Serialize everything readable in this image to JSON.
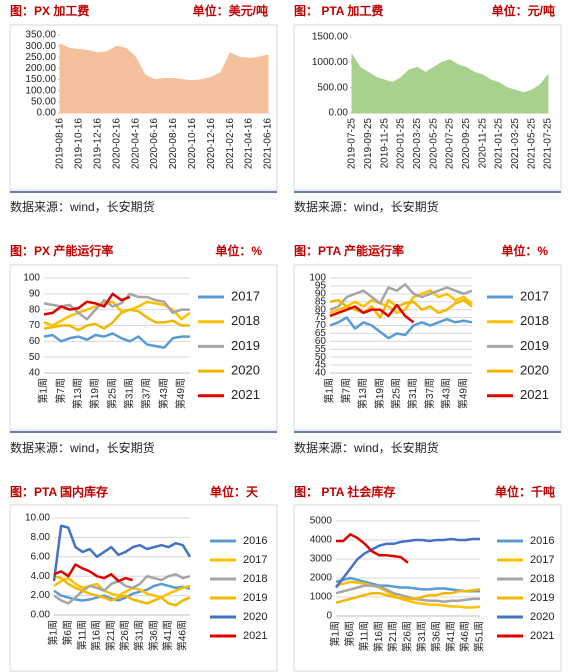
{
  "chart_data": [
    {
      "type": "area",
      "title": "图：PX 加工费",
      "unit": "单位：美元/吨",
      "source": "数据来源：wind，长安期货",
      "color": "#f4c09e",
      "grid": false,
      "categories": [
        "2019-08-16",
        null,
        "2019-10-16",
        null,
        "2019-12-16",
        null,
        "2020-02-16",
        null,
        "2020-04-16",
        null,
        "2020-06-16",
        null,
        "2020-08-16",
        null,
        "2020-10-16",
        null,
        "2020-12-16",
        null,
        "2021-02-16",
        null,
        "2021-04-16",
        null,
        "2021-06-16"
      ],
      "values": [
        310,
        290,
        285,
        280,
        270,
        275,
        300,
        290,
        250,
        170,
        150,
        155,
        155,
        150,
        145,
        150,
        160,
        180,
        270,
        250,
        245,
        250,
        260
      ],
      "ylim": [
        0,
        350
      ],
      "yticks": [
        {
          "value": 0,
          "label": "0.00"
        },
        {
          "value": 50,
          "label": "50.00"
        },
        {
          "value": 100,
          "label": "100.00"
        },
        {
          "value": 150,
          "label": "150.00"
        },
        {
          "value": 200,
          "label": "200.00"
        },
        {
          "value": 250,
          "label": "250.00"
        },
        {
          "value": 300,
          "label": "300.00"
        },
        {
          "value": 350,
          "label": "350.00"
        }
      ]
    },
    {
      "type": "area",
      "title": "图： PTA 加工费",
      "unit": "单位：元/吨",
      "source": "数据来源：wind，长安期货",
      "color": "#a9d18e",
      "grid": false,
      "categories": [
        "2019-07-25",
        null,
        "2019-09-25",
        null,
        "2019-11-25",
        null,
        "2020-01-25",
        null,
        "2020-03-25",
        null,
        "2020-05-25",
        null,
        "2020-07-25",
        null,
        "2020-09-25",
        null,
        "2020-11-25",
        null,
        "2021-01-25",
        null,
        "2021-03-25",
        null,
        "2021-05-25",
        null,
        "2021-07-25"
      ],
      "values": [
        1150,
        900,
        800,
        700,
        650,
        600,
        700,
        850,
        900,
        800,
        900,
        1000,
        1050,
        950,
        900,
        800,
        750,
        650,
        600,
        500,
        450,
        400,
        450,
        550,
        750
      ],
      "ylim": [
        0,
        1500
      ],
      "yticks": [
        {
          "value": 0,
          "label": "0.00"
        },
        {
          "value": 500,
          "label": "500.00"
        },
        {
          "value": 1000,
          "label": "1000.00"
        },
        {
          "value": 1500,
          "label": "1500.00"
        }
      ]
    },
    {
      "type": "line",
      "title": "图：PX 产能运行率",
      "unit": "单位：%",
      "source": "数据来源：wind，长安期货",
      "grid": true,
      "categories": [
        "第1周",
        null,
        "第7周",
        null,
        "第13周",
        null,
        "第19周",
        null,
        "第25周",
        null,
        "第31周",
        null,
        "第37周",
        null,
        "第43周",
        null,
        "第49周",
        null
      ],
      "series": [
        {
          "name": "2017",
          "color": "#5b9bd5",
          "values": [
            63,
            64,
            60,
            62,
            63,
            61,
            64,
            63,
            65,
            62,
            60,
            63,
            58,
            57,
            56,
            62,
            63,
            63
          ]
        },
        {
          "name": "2018",
          "color": "#ffc000",
          "values": [
            72,
            70,
            73,
            76,
            78,
            80,
            82,
            84,
            85,
            79,
            80,
            82,
            85,
            84,
            83,
            80,
            74,
            78
          ]
        },
        {
          "name": "2019",
          "color": "#a5a5a5",
          "values": [
            84,
            83,
            82,
            83,
            78,
            74,
            80,
            86,
            82,
            84,
            90,
            88,
            88,
            86,
            85,
            78,
            80,
            80
          ]
        },
        {
          "name": "2020",
          "color": "#f2b800",
          "values": [
            68,
            69,
            70,
            70,
            67,
            70,
            71,
            68,
            72,
            78,
            80,
            79,
            75,
            72,
            72,
            73,
            70,
            70
          ]
        },
        {
          "name": "2021",
          "color": "#e00000",
          "values": [
            77,
            78,
            82,
            80,
            81,
            85,
            84,
            82,
            90,
            86,
            88,
            null,
            null,
            null,
            null,
            null,
            null,
            null
          ]
        }
      ],
      "ylim": [
        40,
        100
      ],
      "yticks": [
        40,
        50,
        60,
        70,
        80,
        90,
        100
      ]
    },
    {
      "type": "line",
      "title": "图：PTA 产能运行率",
      "unit": "单位：%",
      "source": "数据来源：wind，长安期货",
      "grid": true,
      "categories": [
        "第1周",
        null,
        "第7周",
        null,
        "第13周",
        null,
        "第19周",
        null,
        "第25周",
        null,
        "第31周",
        null,
        "第37周",
        null,
        "第43周",
        null,
        "第49周",
        null
      ],
      "series": [
        {
          "name": "2017",
          "color": "#5b9bd5",
          "values": [
            70,
            72,
            75,
            68,
            72,
            70,
            66,
            62,
            65,
            64,
            70,
            72,
            70,
            72,
            74,
            72,
            73,
            72
          ]
        },
        {
          "name": "2018",
          "color": "#ffc000",
          "values": [
            78,
            80,
            82,
            85,
            82,
            86,
            84,
            82,
            78,
            80,
            88,
            90,
            92,
            88,
            90,
            86,
            88,
            84
          ]
        },
        {
          "name": "2019",
          "color": "#a5a5a5",
          "values": [
            80,
            82,
            88,
            90,
            92,
            88,
            84,
            94,
            92,
            96,
            90,
            88,
            90,
            92,
            94,
            92,
            90,
            92
          ]
        },
        {
          "name": "2020",
          "color": "#f2b800",
          "values": [
            85,
            86,
            82,
            80,
            78,
            82,
            75,
            86,
            82,
            84,
            85,
            80,
            82,
            78,
            80,
            84,
            86,
            82
          ]
        },
        {
          "name": "2021",
          "color": "#e00000",
          "values": [
            76,
            78,
            80,
            82,
            78,
            80,
            80,
            76,
            83,
            76,
            72,
            null,
            null,
            null,
            null,
            null,
            null,
            null
          ]
        }
      ],
      "ylim": [
        40,
        100
      ],
      "yticks": [
        40,
        45,
        50,
        55,
        60,
        65,
        70,
        75,
        80,
        85,
        90,
        95,
        100
      ]
    },
    {
      "type": "line",
      "title": "图：PTA 国内库存",
      "unit": "单位：天",
      "grid": true,
      "categories": [
        "第1周",
        null,
        "第6周",
        null,
        "第11周",
        null,
        "第16周",
        null,
        "第21周",
        null,
        "第26周",
        null,
        "第31周",
        null,
        "第36周",
        null,
        "第41周",
        null,
        "第46周",
        null
      ],
      "series": [
        {
          "name": "2016",
          "color": "#5b9bd5",
          "values": [
            2.5,
            2.0,
            1.8,
            1.6,
            1.5,
            1.6,
            1.8,
            2.0,
            1.7,
            1.5,
            1.8,
            2.2,
            2.4,
            2.6,
            3.0,
            3.2,
            3.0,
            2.8,
            2.9,
            2.7
          ]
        },
        {
          "name": "2017",
          "color": "#ffc000",
          "values": [
            3.0,
            3.5,
            3.8,
            3.2,
            2.8,
            3.0,
            3.2,
            2.5,
            2.2,
            2.0,
            2.4,
            2.8,
            2.6,
            2.2,
            2.0,
            1.8,
            2.2,
            2.5,
            2.8,
            3.0
          ]
        },
        {
          "name": "2018",
          "color": "#a5a5a5",
          "values": [
            2.0,
            1.5,
            1.2,
            1.8,
            2.5,
            3.0,
            2.8,
            2.5,
            3.2,
            3.5,
            3.0,
            2.8,
            3.2,
            4.0,
            3.8,
            3.6,
            4.0,
            4.2,
            3.8,
            4.0
          ]
        },
        {
          "name": "2019",
          "color": "#f2b800",
          "values": [
            4.0,
            3.8,
            3.2,
            2.8,
            2.5,
            2.2,
            2.0,
            1.8,
            1.5,
            1.8,
            2.0,
            1.6,
            1.4,
            1.2,
            1.5,
            1.8,
            1.2,
            1.0,
            1.5,
            1.8
          ]
        },
        {
          "name": "2020",
          "color": "#4472c4",
          "values": [
            3.5,
            9.2,
            9.0,
            7.0,
            6.5,
            6.8,
            6.0,
            6.5,
            7.0,
            6.2,
            6.5,
            7.0,
            7.2,
            6.8,
            7.0,
            7.2,
            7.0,
            7.4,
            7.2,
            6.0
          ]
        },
        {
          "name": "2021",
          "color": "#e00000",
          "values": [
            4.2,
            4.5,
            4.0,
            5.2,
            4.8,
            4.5,
            4.0,
            3.8,
            4.2,
            3.5,
            3.8,
            3.6,
            null,
            null,
            null,
            null,
            null,
            null,
            null,
            null
          ]
        }
      ],
      "ylim": [
        0,
        10
      ],
      "yticks": [
        {
          "value": 0,
          "label": "0.00"
        },
        {
          "value": 2,
          "label": "2.00"
        },
        {
          "value": 4,
          "label": "4.00"
        },
        {
          "value": 6,
          "label": "6.00"
        },
        {
          "value": 8,
          "label": "8.00"
        },
        {
          "value": 10,
          "label": "10.00"
        }
      ]
    },
    {
      "type": "line",
      "title": "图： PTA 社会库存",
      "unit": "单位：千吨",
      "grid": true,
      "categories": [
        "第1周",
        null,
        "第6周",
        null,
        "第11周",
        null,
        "第16周",
        null,
        "第21周",
        null,
        "第26周",
        null,
        "第31周",
        null,
        "第36周",
        null,
        "第41周",
        null,
        "第46周",
        null,
        "第51周"
      ],
      "series": [
        {
          "name": "2016",
          "color": "#5b9bd5",
          "values": [
            1800,
            1900,
            2000,
            1900,
            1800,
            1700,
            1600,
            1600,
            1550,
            1500,
            1500,
            1450,
            1400,
            1400,
            1450,
            1450,
            1400,
            1350,
            1300,
            1300,
            1300
          ]
        },
        {
          "name": "2017",
          "color": "#ffc000",
          "values": [
            1600,
            1700,
            1800,
            1750,
            1700,
            1600,
            1500,
            1300,
            1100,
            900,
            800,
            700,
            650,
            600,
            600,
            550,
            500,
            500,
            450,
            450,
            500
          ]
        },
        {
          "name": "2018",
          "color": "#a5a5a5",
          "values": [
            1200,
            1300,
            1400,
            1500,
            1600,
            1600,
            1550,
            1400,
            1200,
            1100,
            1000,
            900,
            850,
            800,
            800,
            750,
            800,
            800,
            850,
            900,
            900
          ]
        },
        {
          "name": "2019",
          "color": "#f2b800",
          "values": [
            700,
            800,
            900,
            1000,
            1100,
            1200,
            1200,
            1100,
            1000,
            950,
            900,
            900,
            1000,
            1100,
            1100,
            1200,
            1200,
            1300,
            1300,
            1350,
            1400
          ]
        },
        {
          "name": "2020",
          "color": "#4472c4",
          "values": [
            1500,
            2000,
            2500,
            3000,
            3300,
            3500,
            3700,
            3800,
            3800,
            3900,
            3950,
            4000,
            4000,
            3950,
            4000,
            4000,
            4050,
            4000,
            4000,
            4050,
            4050
          ]
        },
        {
          "name": "2021",
          "color": "#e00000",
          "values": [
            3950,
            3950,
            4300,
            4100,
            3800,
            3400,
            3200,
            3200,
            3150,
            3100,
            2800,
            null,
            null,
            null,
            null,
            null,
            null,
            null,
            null,
            null,
            null
          ]
        }
      ],
      "ylim": [
        0,
        5000
      ],
      "yticks": [
        0,
        1000,
        2000,
        3000,
        4000,
        5000
      ]
    }
  ]
}
